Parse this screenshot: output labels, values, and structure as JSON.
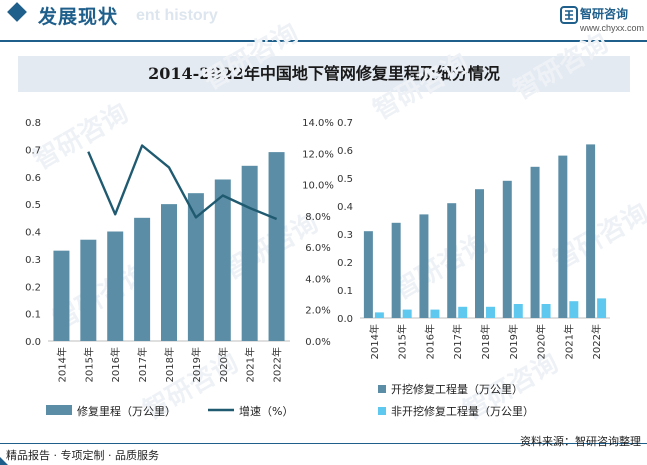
{
  "header": {
    "title": "发展现状",
    "subtitle": "ent history",
    "logo_name": "智研咨询",
    "logo_url": "www.chyxx.com",
    "accent": "#1f5f8b"
  },
  "footer": {
    "left": "精品报告 · 专项定制 · 品质服务",
    "right": "资料来源：智研咨询整理"
  },
  "watermark": "智研咨询",
  "chart_title": "2014-2022年中国地下管网修复里程及细分情况",
  "chart_data": [
    {
      "type": "bar+line",
      "categories": [
        "2014年",
        "2015年",
        "2016年",
        "2017年",
        "2018年",
        "2019年",
        "2020年",
        "2021年",
        "2022年"
      ],
      "series": [
        {
          "name": "修复里程（万公里）",
          "kind": "bar",
          "axis": "left",
          "color": "#5b8ea6",
          "values": [
            0.33,
            0.37,
            0.4,
            0.45,
            0.5,
            0.54,
            0.59,
            0.64,
            0.69
          ]
        },
        {
          "name": "增速（%）",
          "kind": "line",
          "axis": "right",
          "color": "#1f5a70",
          "values": [
            null,
            12.1,
            8.1,
            12.5,
            11.1,
            7.9,
            9.3,
            8.5,
            7.8
          ]
        }
      ],
      "ylim_left": [
        0,
        0.8
      ],
      "yticks_left": [
        "0.0",
        "0.1",
        "0.2",
        "0.3",
        "0.4",
        "0.5",
        "0.6",
        "0.7",
        "0.8"
      ],
      "ylim_right": [
        0,
        14
      ],
      "yticks_right": [
        "0.0%",
        "2.0%",
        "4.0%",
        "6.0%",
        "8.0%",
        "10.0%",
        "12.0%",
        "14.0%"
      ],
      "legend": "bottom"
    },
    {
      "type": "bar",
      "categories": [
        "2014年",
        "2015年",
        "2016年",
        "2017年",
        "2018年",
        "2019年",
        "2020年",
        "2021年",
        "2022年"
      ],
      "series": [
        {
          "name": "开挖修复工程量（万公里）",
          "color": "#5b8ea6",
          "values": [
            0.31,
            0.34,
            0.37,
            0.41,
            0.46,
            0.49,
            0.54,
            0.58,
            0.62
          ]
        },
        {
          "name": "非开挖修复工程量（万公里）",
          "color": "#5ec8ee",
          "values": [
            0.02,
            0.03,
            0.03,
            0.04,
            0.04,
            0.05,
            0.05,
            0.06,
            0.07
          ]
        }
      ],
      "ylim": [
        0,
        0.7
      ],
      "yticks": [
        "0.0",
        "0.1",
        "0.2",
        "0.3",
        "0.4",
        "0.5",
        "0.6",
        "0.7"
      ],
      "legend": "bottom"
    }
  ]
}
